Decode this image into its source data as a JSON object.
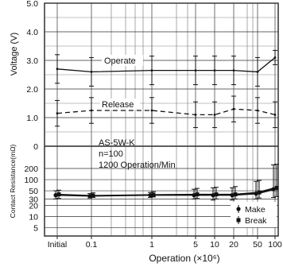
{
  "chart_data": [
    {
      "type": "line",
      "panel": "voltage",
      "ylabel": "Voltage (V)",
      "ylim": [
        0,
        5.0
      ],
      "y_ticks": [
        "0",
        "1.0",
        "2.0",
        "3.0",
        "4.0",
        "5.0"
      ],
      "y_tick_values": [
        0,
        1,
        2,
        3,
        4,
        5
      ],
      "x_labels": [
        "Initial",
        "0.1",
        "1",
        "5",
        "10",
        "20",
        "50",
        "100"
      ],
      "x_scale": "log (with Initial category)",
      "grid": true,
      "annotations": [
        "AS-5W-K",
        "n=100",
        "1200 Operation/Min"
      ],
      "series": [
        {
          "name": "Operate",
          "style": "solid",
          "mean": [
            2.7,
            2.6,
            2.65,
            2.65,
            2.65,
            2.65,
            2.6,
            3.1
          ],
          "upper": [
            3.2,
            3.1,
            3.15,
            3.15,
            3.15,
            3.15,
            3.1,
            3.35
          ],
          "lower": [
            2.2,
            2.1,
            2.15,
            2.15,
            2.15,
            2.15,
            2.1,
            2.85
          ]
        },
        {
          "name": "Release",
          "style": "dashed",
          "mean": [
            1.15,
            1.25,
            1.25,
            1.1,
            1.1,
            1.3,
            1.25,
            1.1
          ],
          "upper": [
            1.6,
            1.7,
            1.7,
            1.55,
            1.55,
            1.75,
            1.7,
            1.55
          ],
          "lower": [
            0.7,
            0.8,
            0.8,
            0.65,
            0.65,
            0.85,
            0.8,
            0.65
          ]
        }
      ]
    },
    {
      "type": "line",
      "panel": "contact-resistance",
      "ylabel": "Contact Resistance(mΩ)",
      "y_scale": "log",
      "ylim": [
        3,
        400
      ],
      "y_ticks": [
        "5",
        "10",
        "20",
        "30",
        "50",
        "100",
        "200"
      ],
      "y_tick_values": [
        5,
        10,
        20,
        30,
        50,
        100,
        200
      ],
      "x_labels": [
        "Initial",
        "0.1",
        "1",
        "5",
        "10",
        "20",
        "50",
        "100"
      ],
      "xlabel": "Operation (×10⁶)",
      "legend": "bottom-right",
      "series": [
        {
          "name": "Make",
          "marker": "dot",
          "mean": [
            38,
            36,
            38,
            38,
            38,
            38,
            42,
            55
          ],
          "upper": [
            50,
            42,
            45,
            55,
            60,
            60,
            90,
            250
          ],
          "lower": [
            30,
            32,
            33,
            30,
            28,
            28,
            30,
            33
          ]
        },
        {
          "name": "Break",
          "marker": "square",
          "mean": [
            40,
            37,
            39,
            40,
            40,
            40,
            45,
            60
          ],
          "upper": [
            52,
            44,
            47,
            58,
            62,
            65,
            95,
            260
          ],
          "lower": [
            31,
            33,
            34,
            31,
            30,
            30,
            32,
            35
          ]
        }
      ]
    }
  ]
}
